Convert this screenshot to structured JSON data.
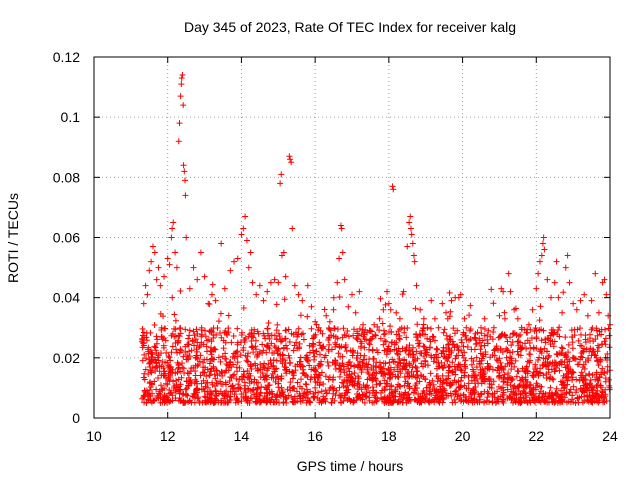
{
  "chart_data": {
    "type": "scatter",
    "title": "Day 345 of 2023, Rate Of TEC Index for receiver kalg",
    "xlabel": "GPS time / hours",
    "ylabel": "ROTI / TECUs",
    "xlim": [
      10,
      24
    ],
    "ylim": [
      0,
      0.12
    ],
    "x_ticks": [
      10,
      12,
      14,
      16,
      18,
      20,
      22,
      24
    ],
    "x_tick_labels": [
      "10",
      "12",
      "14",
      "16",
      "18",
      "20",
      "22",
      "24"
    ],
    "y_ticks": [
      0,
      0.02,
      0.04,
      0.06,
      0.08,
      0.1,
      0.12
    ],
    "y_tick_labels": [
      "0",
      "0.02",
      "0.04",
      "0.06",
      "0.08",
      "0.1",
      "0.12"
    ],
    "grid": true,
    "marker": "+",
    "series_color": "#ff0000",
    "data_coverage": [
      11.3,
      24.0
    ],
    "typical_range": [
      0.005,
      0.03
    ],
    "series": [
      {
        "name": "ROTI",
        "points": [
          [
            11.35,
            0.038
          ],
          [
            11.4,
            0.044
          ],
          [
            11.45,
            0.041
          ],
          [
            11.5,
            0.049
          ],
          [
            11.55,
            0.052
          ],
          [
            11.6,
            0.057
          ],
          [
            11.65,
            0.055
          ],
          [
            11.7,
            0.046
          ],
          [
            11.75,
            0.05
          ],
          [
            11.8,
            0.044
          ],
          [
            11.9,
            0.047
          ],
          [
            12.0,
            0.053
          ],
          [
            12.05,
            0.051
          ],
          [
            12.1,
            0.06
          ],
          [
            12.12,
            0.063
          ],
          [
            12.15,
            0.065
          ],
          [
            12.2,
            0.055
          ],
          [
            12.25,
            0.05
          ],
          [
            12.3,
            0.092
          ],
          [
            12.32,
            0.098
          ],
          [
            12.35,
            0.107
          ],
          [
            12.37,
            0.111
          ],
          [
            12.38,
            0.113
          ],
          [
            12.4,
            0.114
          ],
          [
            12.42,
            0.104
          ],
          [
            12.43,
            0.084
          ],
          [
            12.45,
            0.082
          ],
          [
            12.47,
            0.079
          ],
          [
            12.48,
            0.074
          ],
          [
            12.5,
            0.06
          ],
          [
            12.6,
            0.043
          ],
          [
            12.7,
            0.05
          ],
          [
            12.8,
            0.046
          ],
          [
            12.9,
            0.055
          ],
          [
            13.0,
            0.047
          ],
          [
            13.1,
            0.038
          ],
          [
            13.2,
            0.041
          ],
          [
            13.3,
            0.039
          ],
          [
            13.45,
            0.058
          ],
          [
            13.55,
            0.043
          ],
          [
            13.7,
            0.049
          ],
          [
            13.8,
            0.052
          ],
          [
            13.9,
            0.053
          ],
          [
            14.0,
            0.061
          ],
          [
            14.05,
            0.063
          ],
          [
            14.1,
            0.067
          ],
          [
            14.15,
            0.059
          ],
          [
            14.2,
            0.05
          ],
          [
            14.25,
            0.055
          ],
          [
            14.3,
            0.045
          ],
          [
            14.4,
            0.041
          ],
          [
            14.5,
            0.044
          ],
          [
            14.6,
            0.039
          ],
          [
            14.7,
            0.042
          ],
          [
            14.8,
            0.045
          ],
          [
            14.9,
            0.046
          ],
          [
            15.0,
            0.045
          ],
          [
            15.05,
            0.078
          ],
          [
            15.08,
            0.081
          ],
          [
            15.1,
            0.054
          ],
          [
            15.15,
            0.055
          ],
          [
            15.2,
            0.047
          ],
          [
            15.3,
            0.087
          ],
          [
            15.32,
            0.086
          ],
          [
            15.35,
            0.085
          ],
          [
            15.38,
            0.063
          ],
          [
            15.45,
            0.044
          ],
          [
            15.55,
            0.041
          ],
          [
            15.65,
            0.039
          ],
          [
            15.8,
            0.044
          ],
          [
            15.9,
            0.037
          ],
          [
            16.0,
            0.032
          ],
          [
            16.1,
            0.03
          ],
          [
            16.2,
            0.028
          ],
          [
            16.3,
            0.034
          ],
          [
            16.4,
            0.032
          ],
          [
            16.5,
            0.036
          ],
          [
            16.6,
            0.045
          ],
          [
            16.65,
            0.053
          ],
          [
            16.7,
            0.064
          ],
          [
            16.72,
            0.063
          ],
          [
            16.75,
            0.055
          ],
          [
            16.8,
            0.046
          ],
          [
            16.9,
            0.037
          ],
          [
            17.0,
            0.041
          ],
          [
            17.1,
            0.035
          ],
          [
            17.2,
            0.042
          ],
          [
            17.3,
            0.031
          ],
          [
            17.5,
            0.029
          ],
          [
            17.6,
            0.031
          ],
          [
            17.75,
            0.033
          ],
          [
            17.85,
            0.036
          ],
          [
            17.95,
            0.042
          ],
          [
            18.0,
            0.038
          ],
          [
            18.05,
            0.036
          ],
          [
            18.1,
            0.077
          ],
          [
            18.12,
            0.076
          ],
          [
            18.2,
            0.035
          ],
          [
            18.3,
            0.033
          ],
          [
            18.4,
            0.042
          ],
          [
            18.5,
            0.057
          ],
          [
            18.55,
            0.065
          ],
          [
            18.58,
            0.067
          ],
          [
            18.6,
            0.063
          ],
          [
            18.62,
            0.061
          ],
          [
            18.65,
            0.058
          ],
          [
            18.68,
            0.054
          ],
          [
            18.7,
            0.052
          ],
          [
            18.75,
            0.044
          ],
          [
            18.85,
            0.036
          ],
          [
            18.95,
            0.033
          ],
          [
            19.05,
            0.03
          ],
          [
            19.15,
            0.039
          ],
          [
            19.25,
            0.033
          ],
          [
            19.35,
            0.03
          ],
          [
            19.45,
            0.038
          ],
          [
            19.55,
            0.035
          ],
          [
            19.6,
            0.033
          ],
          [
            19.7,
            0.039
          ],
          [
            19.8,
            0.04
          ],
          [
            19.9,
            0.04
          ],
          [
            19.95,
            0.041
          ],
          [
            20.05,
            0.033
          ],
          [
            20.1,
            0.03
          ],
          [
            20.2,
            0.029
          ],
          [
            20.35,
            0.028
          ],
          [
            20.5,
            0.03
          ],
          [
            20.6,
            0.033
          ],
          [
            20.7,
            0.029
          ],
          [
            20.85,
            0.03
          ],
          [
            21.0,
            0.034
          ],
          [
            21.05,
            0.043
          ],
          [
            21.1,
            0.042
          ],
          [
            21.15,
            0.033
          ],
          [
            21.25,
            0.048
          ],
          [
            21.3,
            0.042
          ],
          [
            21.4,
            0.036
          ],
          [
            21.5,
            0.033
          ],
          [
            21.6,
            0.03
          ],
          [
            21.8,
            0.031
          ],
          [
            21.9,
            0.036
          ],
          [
            22.0,
            0.043
          ],
          [
            22.05,
            0.048
          ],
          [
            22.1,
            0.052
          ],
          [
            22.15,
            0.054
          ],
          [
            22.18,
            0.058
          ],
          [
            22.2,
            0.06
          ],
          [
            22.22,
            0.056
          ],
          [
            22.3,
            0.046
          ],
          [
            22.4,
            0.04
          ],
          [
            22.5,
            0.045
          ],
          [
            22.55,
            0.052
          ],
          [
            22.6,
            0.04
          ],
          [
            22.7,
            0.035
          ],
          [
            22.8,
            0.05
          ],
          [
            22.85,
            0.054
          ],
          [
            22.9,
            0.045
          ],
          [
            23.0,
            0.038
          ],
          [
            23.1,
            0.036
          ],
          [
            23.2,
            0.039
          ],
          [
            23.3,
            0.041
          ],
          [
            23.4,
            0.034
          ],
          [
            23.5,
            0.039
          ],
          [
            23.6,
            0.048
          ],
          [
            23.7,
            0.035
          ],
          [
            23.8,
            0.045
          ],
          [
            23.85,
            0.046
          ],
          [
            23.9,
            0.041
          ],
          [
            23.95,
            0.034
          ],
          [
            24.0,
            0.031
          ]
        ]
      }
    ]
  }
}
